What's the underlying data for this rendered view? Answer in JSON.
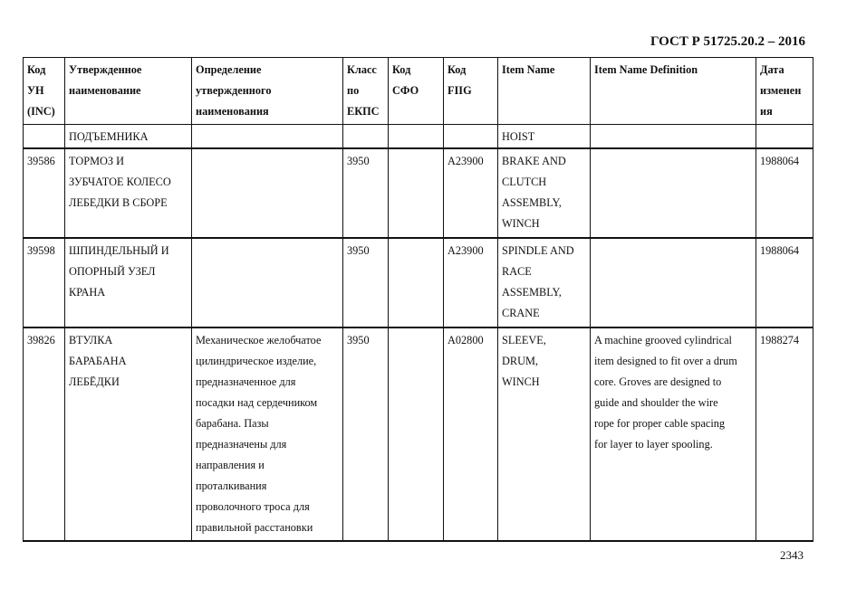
{
  "header": "ГОСТ Р 51725.20.2 – 2016",
  "page_number": "2343",
  "columns": [
    "Код\nУН\n(INC)",
    "Утвержденное\nнаименование",
    "Определение\nутвержденного\nнаименования",
    "Класс\nпо\nЕКПС",
    "Код\nСФО",
    "Код\nFIIG",
    "Item Name",
    "Item Name Definition",
    "Дата\nизменен\nия"
  ],
  "rows": [
    [
      "",
      "ПОДЪЕМНИКА",
      "",
      "",
      "",
      "",
      "HOIST",
      "",
      ""
    ],
    [
      "39586",
      "ТОРМОЗ И\nЗУБЧАТОЕ КОЛЕСО\nЛЕБЕДКИ В СБОРЕ",
      "",
      "3950",
      "",
      "A23900",
      "BRAKE AND\nCLUTCH\nASSEMBLY,\nWINCH",
      "",
      "1988064"
    ],
    [
      "39598",
      "ШПИНДЕЛЬНЫЙ И\nОПОРНЫЙ УЗЕЛ\nКРАНА",
      "",
      "3950",
      "",
      "A23900",
      "SPINDLE AND\nRACE\nASSEMBLY,\nCRANE",
      "",
      "1988064"
    ],
    [
      "39826",
      "ВТУЛКА\nБАРАБАНА\nЛЕБЁДКИ",
      "Механическое желобчатое\nцилиндрическое изделие,\nпредназначенное для\nпосадки над сердечником\nбарабана. Пазы\nпредназначены для\nнаправления и\nпроталкивания\nпроволочного троса для\nправильной расстановки",
      "3950",
      "",
      "A02800",
      "SLEEVE,\nDRUM,\nWINCH",
      "A machine grooved cylindrical\nitem designed to fit over a drum\ncore. Groves are designed to\nguide and shoulder the wire\nrope for proper cable spacing\nfor layer to layer spooling.",
      "1988274"
    ]
  ]
}
